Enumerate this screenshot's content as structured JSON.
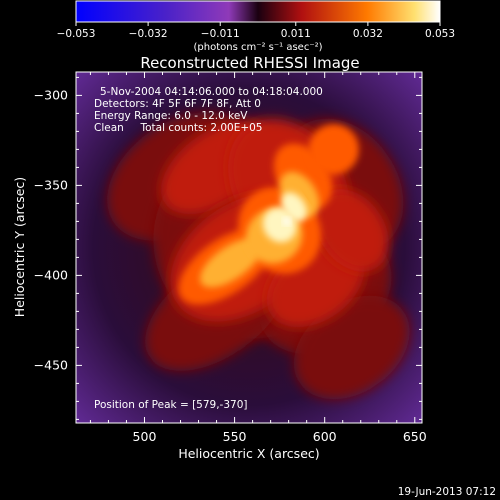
{
  "chart_data": {
    "type": "heatmap",
    "title": "Reconstructed RHESSI Image",
    "xlabel": "Heliocentric X (arcsec)",
    "ylabel": "Heliocentric Y (arcsec)",
    "xlim": [
      462,
      654
    ],
    "ylim": [
      -482,
      -287
    ],
    "x_ticks": [
      500,
      550,
      600,
      650
    ],
    "y_ticks": [
      -300,
      -350,
      -400,
      -450
    ],
    "colorbar": {
      "ticks": [
        -0.053,
        -0.032,
        -0.011,
        0.011,
        0.032,
        0.053
      ],
      "tick_labels": [
        "-0.053",
        "-0.032",
        "-0.011",
        "0.011",
        "0.032",
        "0.053"
      ],
      "units_label": "(photons cm⁻² s⁻¹ asec⁻²)",
      "range": [
        -0.053,
        0.053
      ]
    },
    "annotations": [
      "5-Nov-2004 04:14:06.000 to 04:18:04.000",
      "Detectors: 4F 5F 6F 7F 8F, Att 0",
      "Energy Range: 6.0 - 12.0 keV",
      "Clean     Total counts: 2.00E+05",
      "Position of Peak = [579,-370]"
    ],
    "peak": {
      "x": 579,
      "y": -370
    },
    "timestamp": "19-Jun-2013 07:12",
    "colormap": [
      "#0000ff",
      "#5a1aa0",
      "#8a2cb0",
      "#6a1e8a",
      "#000000",
      "#c01010",
      "#ff7700",
      "#ffd860",
      "#ffffff"
    ],
    "grid": false,
    "legend": "colorbar top"
  }
}
